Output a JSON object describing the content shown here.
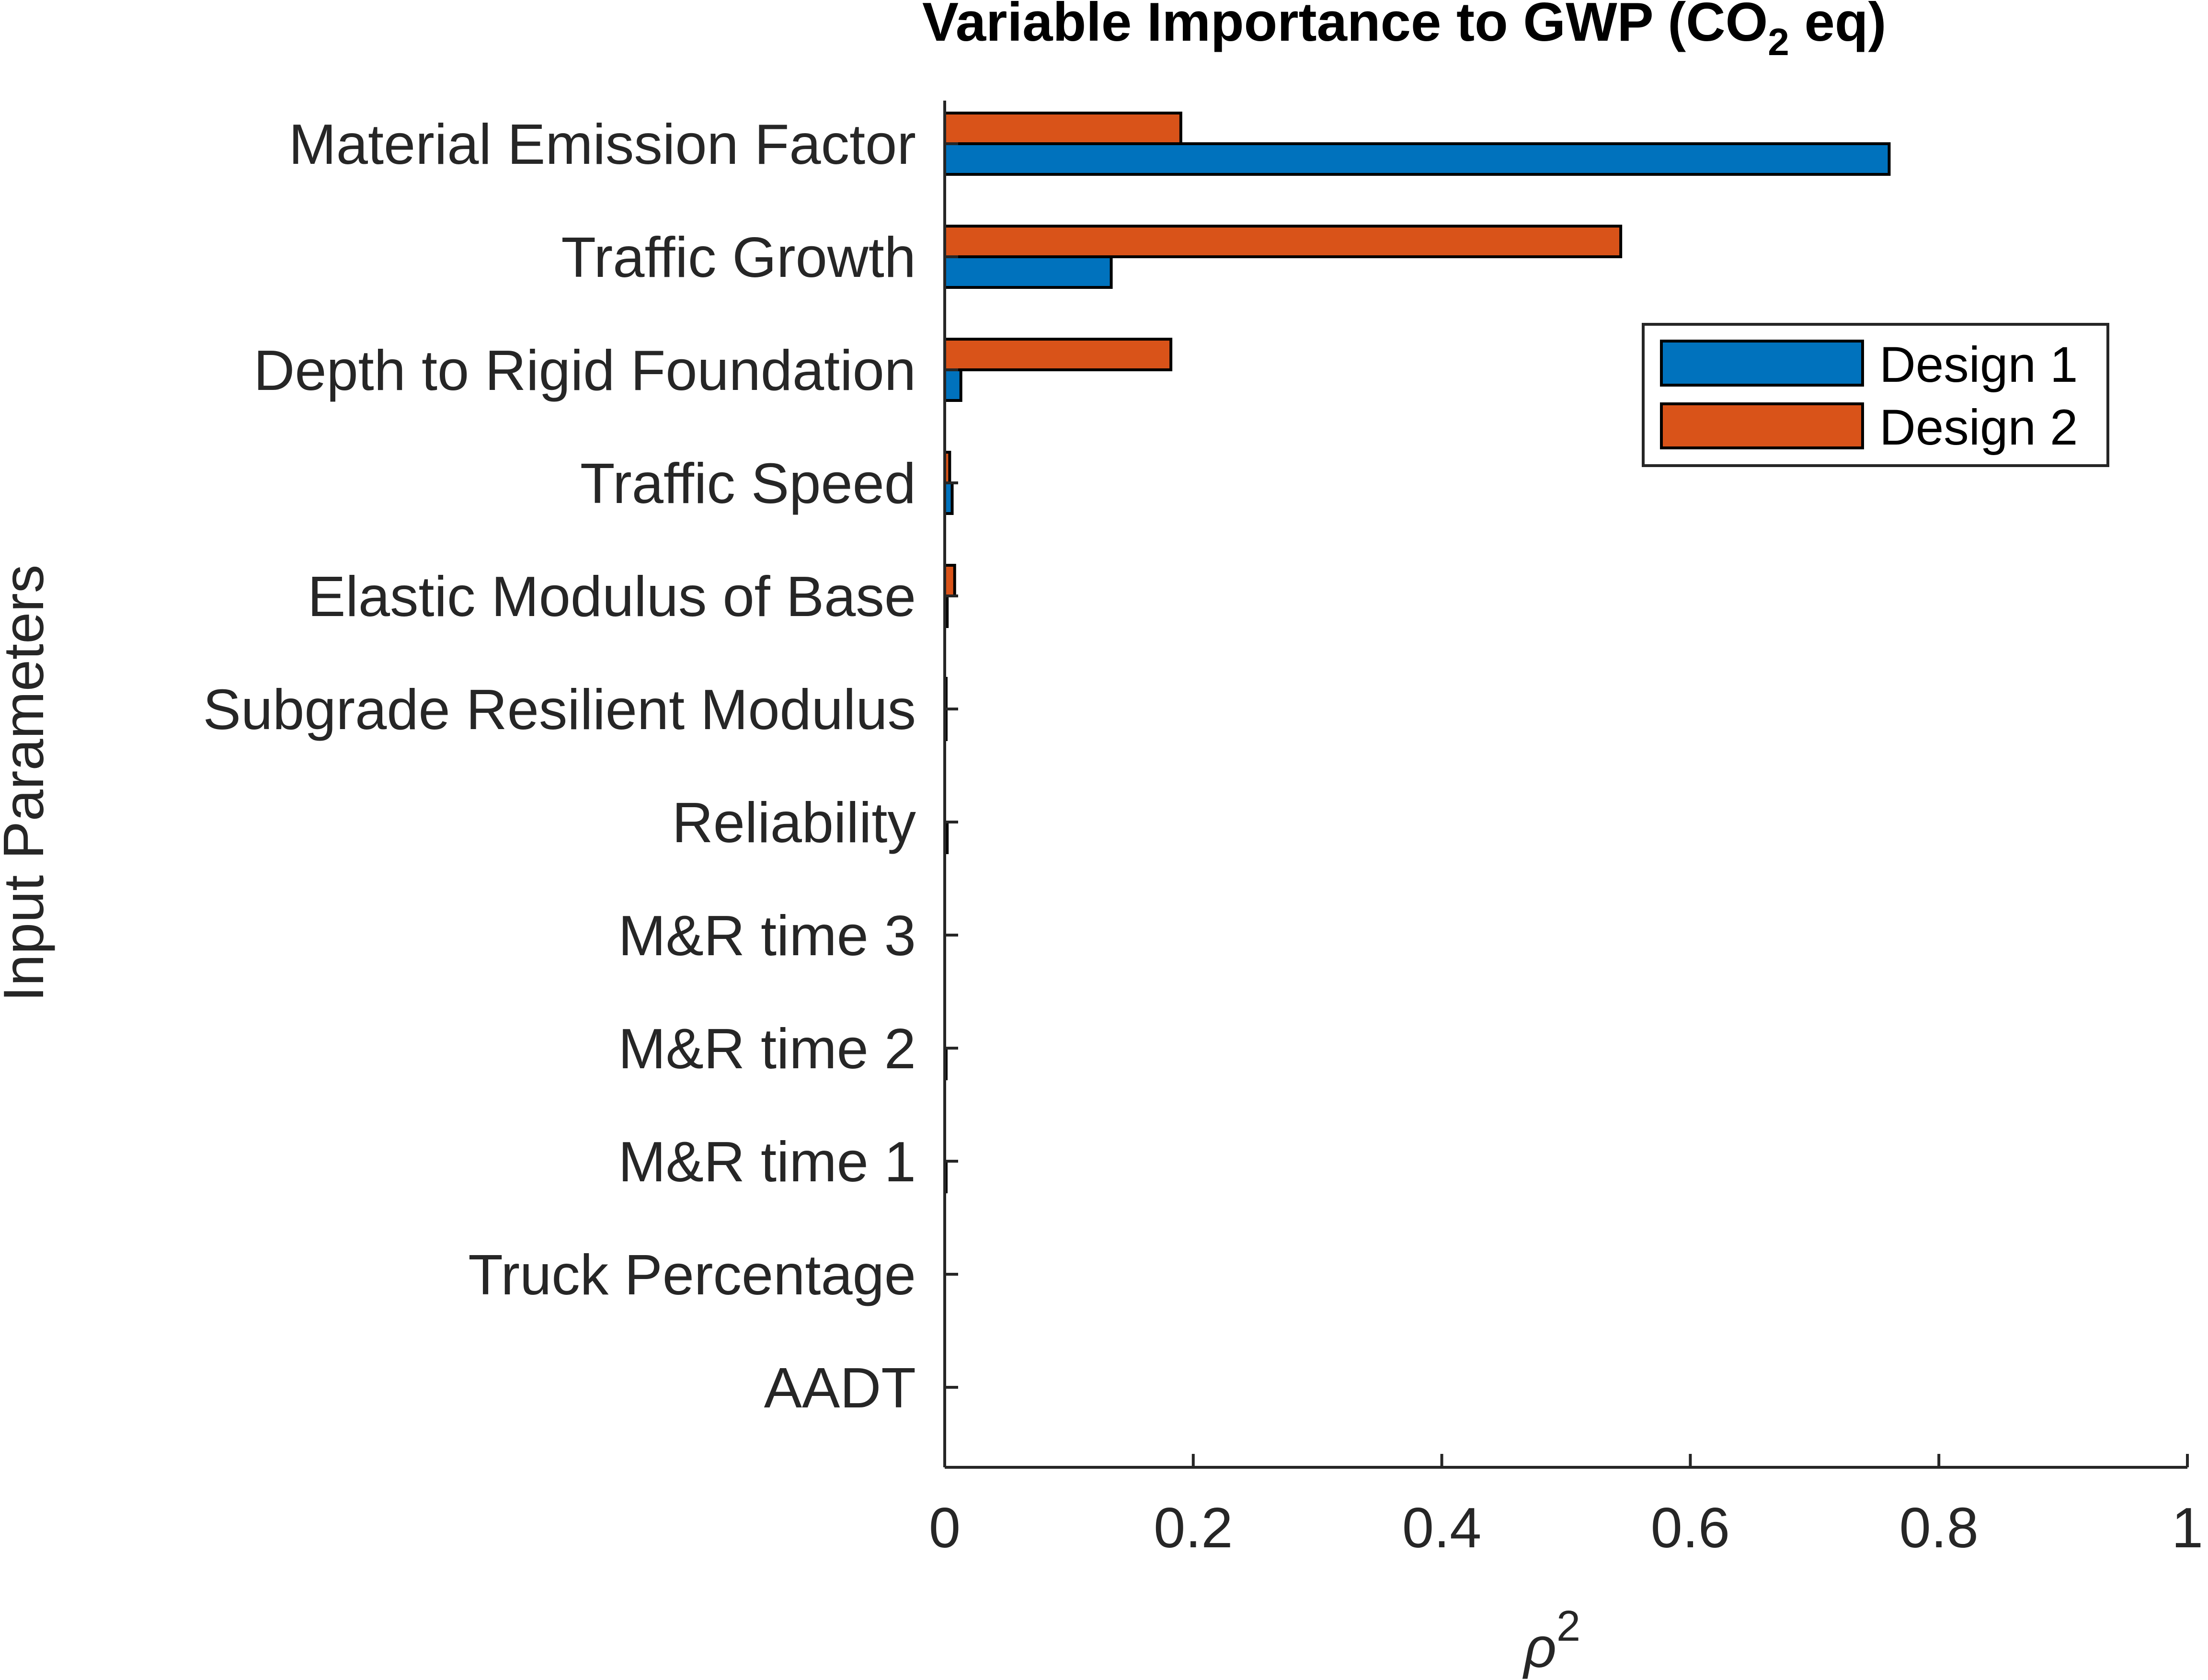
{
  "chart_data": {
    "type": "bar",
    "orientation": "horizontal",
    "title": "Variable Importance to GWP (CO",
    "title_sub": "2",
    "title_end": " eq)",
    "xlabel": "ρ",
    "xlabel_sup": "2",
    "ylabel": "Input Parameters",
    "xlim": [
      0,
      1
    ],
    "xticks": [
      "0",
      "0.2",
      "0.4",
      "0.6",
      "0.8",
      "1"
    ],
    "categories": [
      "Material Emission Factor",
      "Traffic Growth",
      "Depth to Rigid Foundation",
      "Traffic Speed",
      "Elastic Modulus of Base",
      "Subgrade Resilient Modulus",
      "Reliability",
      "M&R time 3",
      "M&R time 2",
      "M&R time 1",
      "Truck Percentage",
      "AADT"
    ],
    "series": [
      {
        "name": "Design 1",
        "color": "#0072BD",
        "values": [
          0.76,
          0.134,
          0.013,
          0.006,
          0.002,
          0.001,
          0.002,
          0.0,
          0.001,
          0.001,
          0.0,
          0.0
        ]
      },
      {
        "name": "Design 2",
        "color": "#D95319",
        "values": [
          0.19,
          0.544,
          0.182,
          0.004,
          0.008,
          0.001,
          0.0,
          0.0,
          0.0,
          0.0,
          0.0,
          0.0
        ]
      }
    ],
    "legend": {
      "position": "top-right"
    },
    "grid": false
  }
}
